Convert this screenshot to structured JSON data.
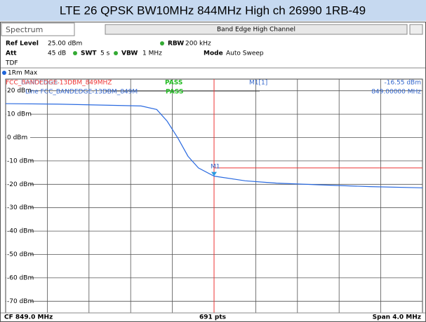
{
  "title": "LTE 26 QPSK BW10MHz 844MHz High ch 26990 1RB-49",
  "tab": "Spectrum",
  "window_title": "Band Edge High Channel",
  "settings": {
    "ref_level_label": "Ref Level",
    "ref_level": "25.00 dBm",
    "rbw_label": "RBW",
    "rbw": "200 kHz",
    "att_label": "Att",
    "att": "45 dB",
    "swt_label": "SWT",
    "swt": "5 s",
    "vbw_label": "VBW",
    "vbw": "1 MHz",
    "mode_label": "Mode",
    "mode": "Auto Sweep",
    "tdf": "TDF"
  },
  "trace_label": "1Rm Max",
  "limit_check": {
    "label": "Limit Check",
    "line_name": "FCC_BANDEDGE-13DBM_849MHZ",
    "result": "PASS",
    "line_label": "Line FCC_BANDEDGE-13DBM_849M",
    "line_result": "PASS"
  },
  "marker": {
    "name": "M1[1]",
    "level": "-16.55 dBm",
    "freq": "849.00000 MHz",
    "tag": "M1"
  },
  "y_labels": [
    "20 dBm",
    "10 dBm",
    "0 dBm",
    "-10 dBm",
    "-20 dBm",
    "-30 dBm",
    "-40 dBm",
    "-50 dBm",
    "-60 dBm",
    "-70 dBm"
  ],
  "footer": {
    "cf": "CF 849.0 MHz",
    "pts": "691 pts",
    "span": "Span 4.0 MHz"
  },
  "trace": {
    "x_mhz": [
      847,
      847.5,
      848,
      848.3,
      848.45,
      848.55,
      848.65,
      848.75,
      848.85,
      849,
      849.3,
      849.6,
      850,
      850.5,
      851
    ],
    "y_dbm": [
      14.5,
      14.3,
      13.8,
      13.5,
      12,
      7,
      0,
      -8,
      -13,
      -16.5,
      -18.5,
      -19.5,
      -20.2,
      -21,
      -21.5
    ]
  }
}
